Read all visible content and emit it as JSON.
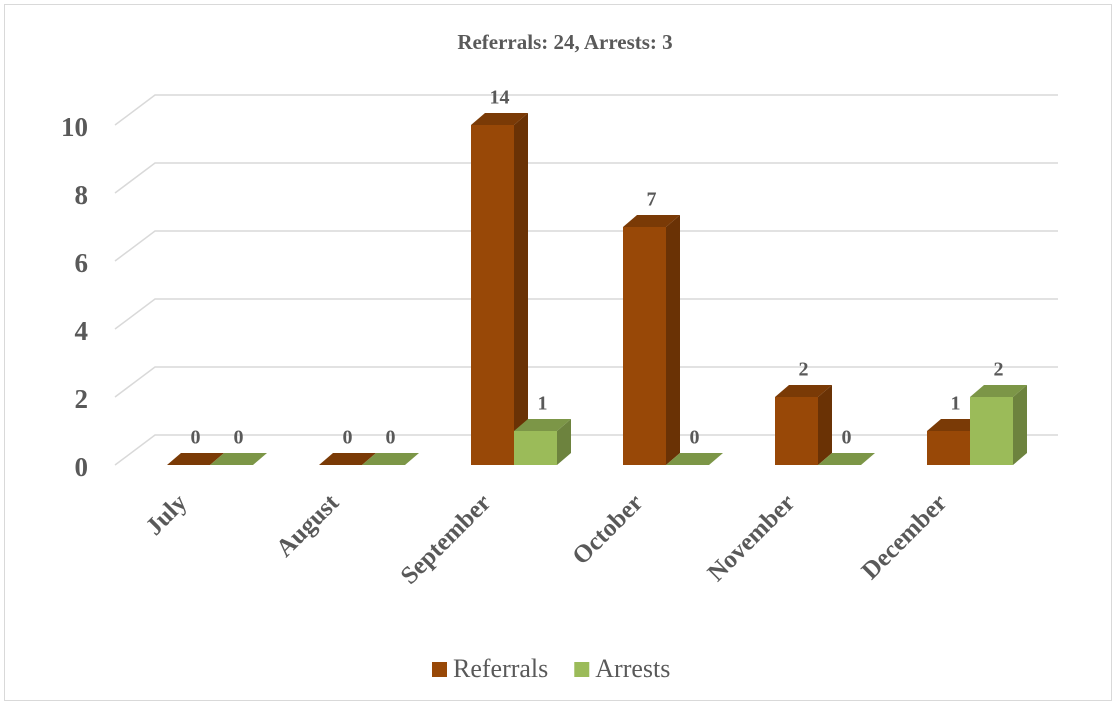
{
  "chart_data": {
    "type": "bar3d",
    "title": "Referrals: 24, Arrests: 3",
    "categories": [
      "July",
      "August",
      "September",
      "October",
      "November",
      "December"
    ],
    "series": [
      {
        "name": "Referrals",
        "color": "#984807",
        "values": [
          0,
          0,
          14,
          7,
          2,
          1
        ]
      },
      {
        "name": "Arrests",
        "color": "#9bbb59",
        "values": [
          0,
          0,
          1,
          0,
          0,
          2
        ]
      }
    ],
    "ylim": [
      0,
      10
    ],
    "yticks": [
      0,
      2,
      4,
      6,
      8,
      10
    ],
    "grid": true,
    "legend": "bottom"
  }
}
